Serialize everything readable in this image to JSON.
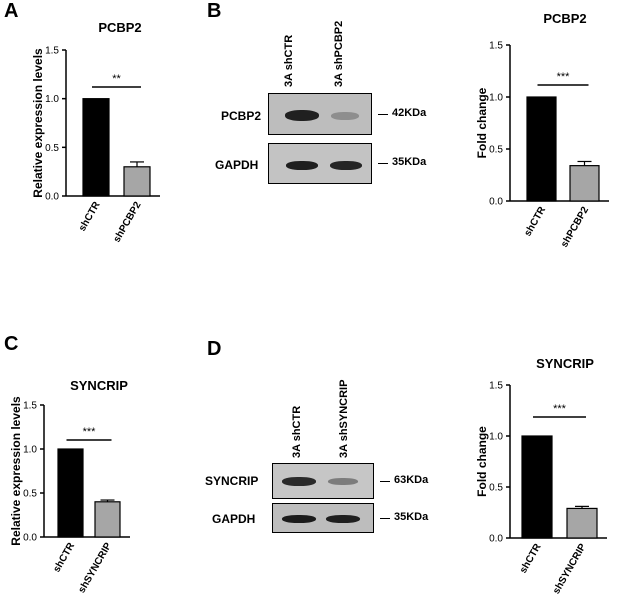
{
  "panels": {
    "A": "A",
    "B": "B",
    "C": "C",
    "D": "D"
  },
  "chart_data": [
    {
      "id": "A",
      "type": "bar",
      "title": "PCBP2",
      "ylabel": "Relative expression levels",
      "categories": [
        "shCTR",
        "shPCBP2"
      ],
      "values": [
        1.0,
        0.3
      ],
      "errors": [
        0,
        0.05
      ],
      "colors": [
        "#000000",
        "#a6a6a6"
      ],
      "ylim": [
        0,
        1.5
      ],
      "yticks": [
        0.0,
        0.5,
        1.0,
        1.5
      ],
      "ytick_labels": [
        "0.0",
        "0.5",
        "1.0",
        "1.5"
      ],
      "significance": "**",
      "grid": false
    },
    {
      "id": "B",
      "type": "bar",
      "title": "PCBP2",
      "ylabel": "Fold change",
      "categories": [
        "shCTR",
        "shPCBP2"
      ],
      "values": [
        1.0,
        0.34
      ],
      "errors": [
        0,
        0.04
      ],
      "colors": [
        "#000000",
        "#a6a6a6"
      ],
      "ylim": [
        0,
        1.5
      ],
      "yticks": [
        0.0,
        0.5,
        1.0,
        1.5
      ],
      "ytick_labels": [
        "0.0",
        "0.5",
        "1.0",
        "1.5"
      ],
      "significance": "***",
      "grid": false
    },
    {
      "id": "C",
      "type": "bar",
      "title": "SYNCRIP",
      "ylabel": "Relative expression levels",
      "categories": [
        "shCTR",
        "shSYNCRIP"
      ],
      "values": [
        1.0,
        0.4
      ],
      "errors": [
        0,
        0.02
      ],
      "colors": [
        "#000000",
        "#a6a6a6"
      ],
      "ylim": [
        0,
        1.5
      ],
      "yticks": [
        0.0,
        0.5,
        1.0,
        1.5
      ],
      "ytick_labels": [
        "0.0",
        "0.5",
        "1.0",
        "1.5"
      ],
      "significance": "***",
      "grid": false
    },
    {
      "id": "D",
      "type": "bar",
      "title": "SYNCRIP",
      "ylabel": "Fold change",
      "categories": [
        "shCTR",
        "shSYNCRIP"
      ],
      "values": [
        1.0,
        0.29
      ],
      "errors": [
        0,
        0.02
      ],
      "colors": [
        "#000000",
        "#a6a6a6"
      ],
      "ylim": [
        0,
        1.5
      ],
      "yticks": [
        0.0,
        0.5,
        1.0,
        1.5
      ],
      "ytick_labels": [
        "0.0",
        "0.5",
        "1.0",
        "1.5"
      ],
      "significance": "***",
      "grid": false
    }
  ],
  "blots": {
    "B": {
      "lanes": [
        "3A shCTR",
        "3A shPCBP2"
      ],
      "rows": [
        {
          "protein": "PCBP2",
          "size": "42KDa"
        },
        {
          "protein": "GAPDH",
          "size": "35KDa"
        }
      ]
    },
    "D": {
      "lanes": [
        "3A shCTR",
        "3A shSYNCRIP"
      ],
      "rows": [
        {
          "protein": "SYNCRIP",
          "size": "63KDa"
        },
        {
          "protein": "GAPDH",
          "size": "35KDa"
        }
      ]
    }
  }
}
